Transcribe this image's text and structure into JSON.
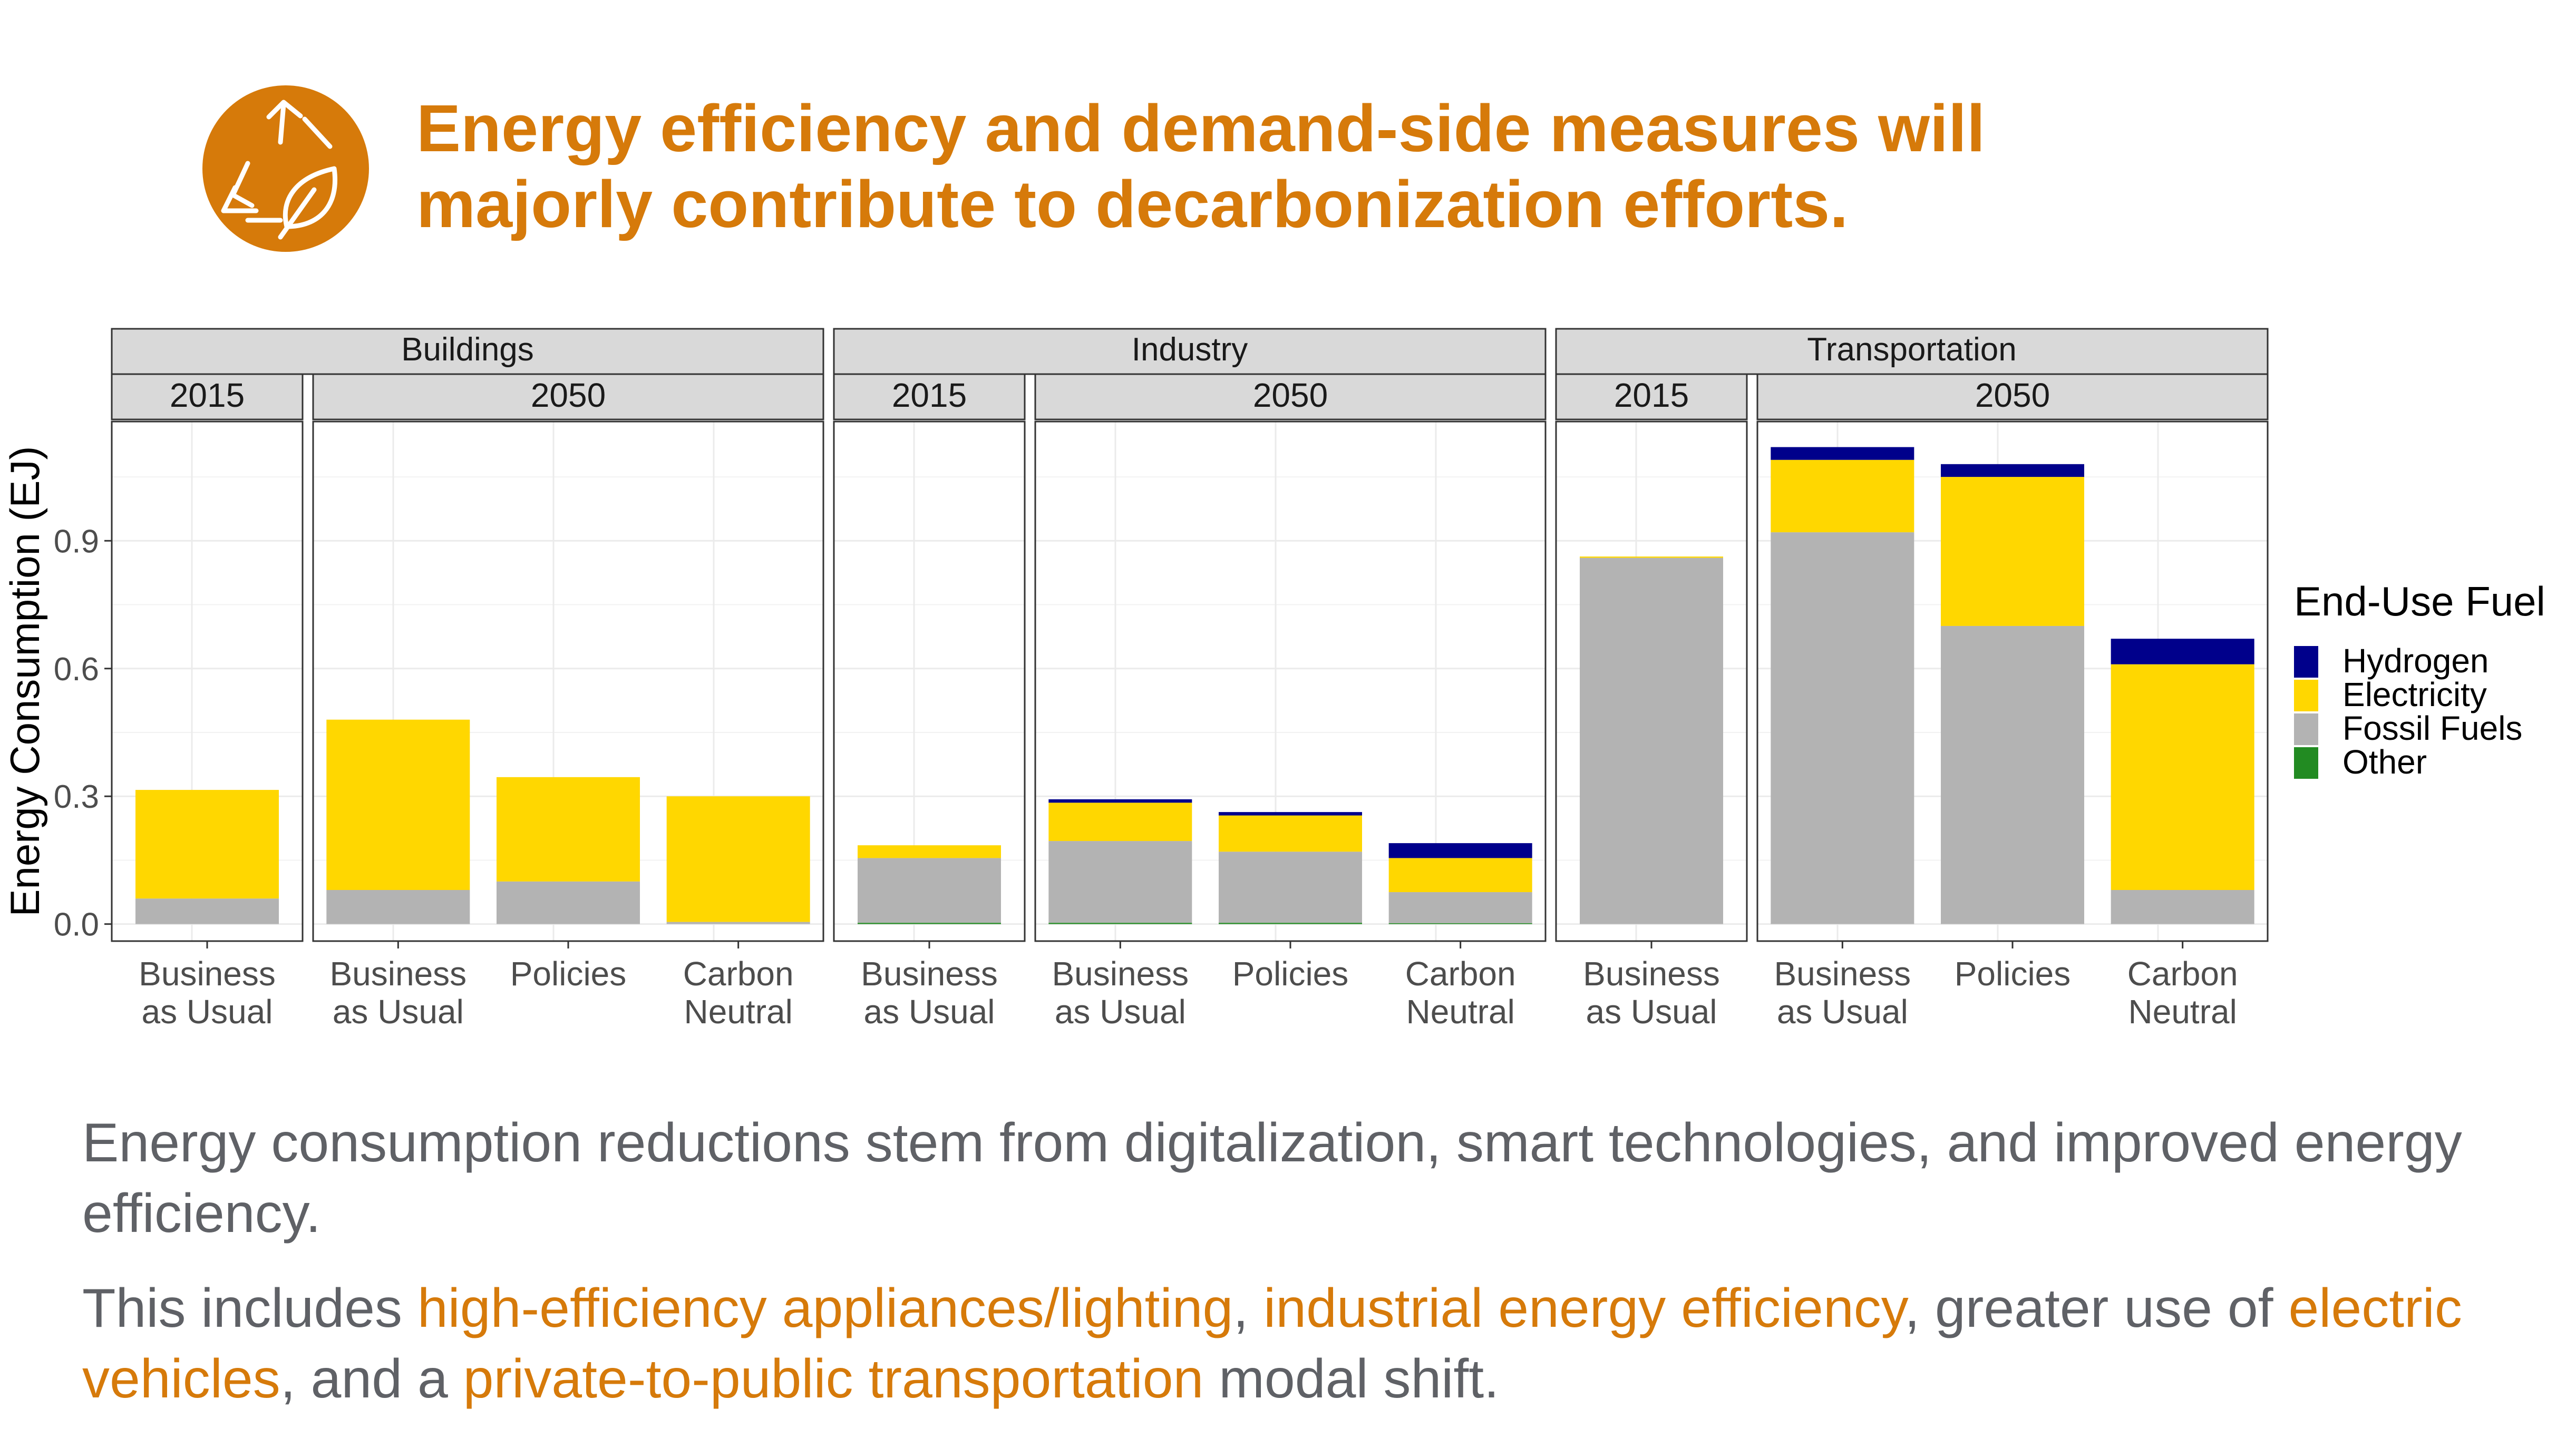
{
  "slide": {
    "title_line1": "Energy efficiency and demand-side measures will",
    "title_line2": "majorly contribute to decarbonization efforts.",
    "logo_icon": "recycle-leaf-icon",
    "paragraph1": "Energy consumption reductions stem from digitalization, smart technologies, and improved energy efficiency.",
    "paragraph2": {
      "t1": "This includes ",
      "h1": "high-efficiency appliances/lighting",
      "t2": ", ",
      "h2": "industrial energy efficiency",
      "t3": ", greater use of ",
      "h3": "electric vehicles",
      "t4": ", and a ",
      "h4": "private-to-public transportation",
      "t5": " modal shift."
    }
  },
  "colors": {
    "accent": "#D67A0A",
    "body_text": "#5F6166",
    "Hydrogen": "#00008B",
    "Electricity": "#FFD700",
    "Fossil Fuels": "#B3B3B3",
    "Other": "#228B22"
  },
  "chart_data": {
    "type": "bar",
    "stacked": true,
    "ylabel": "Energy Consumption (EJ)",
    "ylim": [
      -0.04,
      1.18
    ],
    "yticks": [
      0.0,
      0.3,
      0.6,
      0.9
    ],
    "ytick_labels": [
      "0.0",
      "0.3",
      "0.6",
      "0.9"
    ],
    "grid": true,
    "legend": {
      "title": "End-Use Fuel",
      "placement": "right",
      "entries": [
        "Hydrogen",
        "Electricity",
        "Fossil Fuels",
        "Other"
      ]
    },
    "stack_order": [
      "Other",
      "Fossil Fuels",
      "Electricity",
      "Hydrogen"
    ],
    "sectors": [
      {
        "name": "Buildings",
        "years": [
          {
            "year": "2015",
            "bars": [
              {
                "label": [
                  "Business",
                  "as Usual"
                ],
                "Other": 0.0,
                "Fossil Fuels": 0.06,
                "Electricity": 0.255,
                "Hydrogen": 0.0
              }
            ]
          },
          {
            "year": "2050",
            "bars": [
              {
                "label": [
                  "Business",
                  "as Usual"
                ],
                "Other": 0.0,
                "Fossil Fuels": 0.08,
                "Electricity": 0.4,
                "Hydrogen": 0.0
              },
              {
                "label": [
                  "Policies"
                ],
                "Other": 0.0,
                "Fossil Fuels": 0.1,
                "Electricity": 0.245,
                "Hydrogen": 0.0
              },
              {
                "label": [
                  "Carbon",
                  "Neutral"
                ],
                "Other": 0.0,
                "Fossil Fuels": 0.005,
                "Electricity": 0.295,
                "Hydrogen": 0.0
              }
            ]
          }
        ]
      },
      {
        "name": "Industry",
        "years": [
          {
            "year": "2015",
            "bars": [
              {
                "label": [
                  "Business",
                  "as Usual"
                ],
                "Other": 0.003,
                "Fossil Fuels": 0.152,
                "Electricity": 0.03,
                "Hydrogen": 0.0
              }
            ]
          },
          {
            "year": "2050",
            "bars": [
              {
                "label": [
                  "Business",
                  "as Usual"
                ],
                "Other": 0.003,
                "Fossil Fuels": 0.192,
                "Electricity": 0.09,
                "Hydrogen": 0.008
              },
              {
                "label": [
                  "Policies"
                ],
                "Other": 0.003,
                "Fossil Fuels": 0.167,
                "Electricity": 0.085,
                "Hydrogen": 0.008
              },
              {
                "label": [
                  "Carbon",
                  "Neutral"
                ],
                "Other": 0.002,
                "Fossil Fuels": 0.073,
                "Electricity": 0.08,
                "Hydrogen": 0.035
              }
            ]
          }
        ]
      },
      {
        "name": "Transportation",
        "years": [
          {
            "year": "2015",
            "bars": [
              {
                "label": [
                  "Business",
                  "as Usual"
                ],
                "Other": 0.0,
                "Fossil Fuels": 0.86,
                "Electricity": 0.003,
                "Hydrogen": 0.0
              }
            ]
          },
          {
            "year": "2050",
            "bars": [
              {
                "label": [
                  "Business",
                  "as Usual"
                ],
                "Other": 0.0,
                "Fossil Fuels": 0.92,
                "Electricity": 0.17,
                "Hydrogen": 0.03
              },
              {
                "label": [
                  "Policies"
                ],
                "Other": 0.0,
                "Fossil Fuels": 0.7,
                "Electricity": 0.35,
                "Hydrogen": 0.03
              },
              {
                "label": [
                  "Carbon",
                  "Neutral"
                ],
                "Other": 0.0,
                "Fossil Fuels": 0.08,
                "Electricity": 0.53,
                "Hydrogen": 0.06
              }
            ]
          }
        ]
      }
    ]
  }
}
